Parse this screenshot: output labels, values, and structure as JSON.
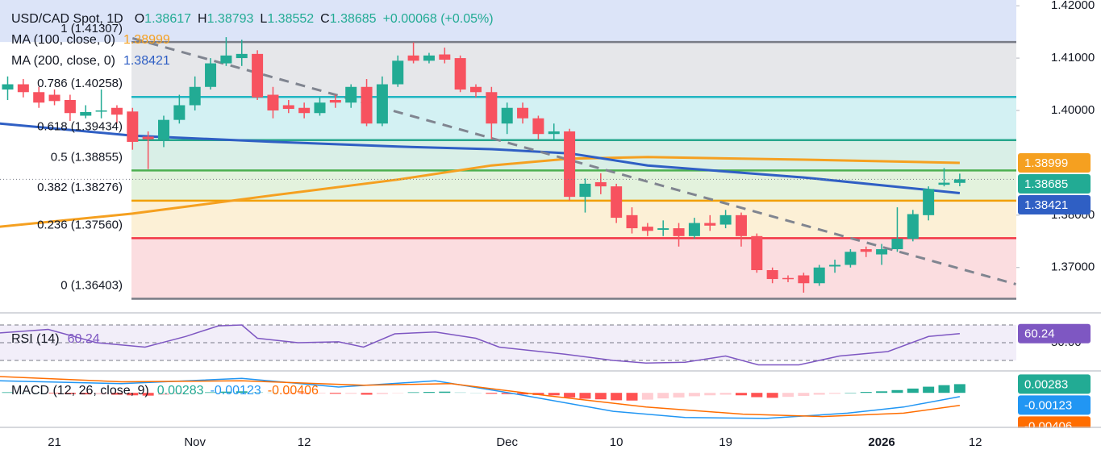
{
  "chart_data": {
    "type": "candlestick",
    "title": "USD/CAD Spot, 1D",
    "ohlc_labels": [
      "O",
      "H",
      "L",
      "C"
    ],
    "change": "+0.00068 (+0.05%)",
    "categories": [
      null,
      null,
      null,
      "21",
      null,
      null,
      null,
      null,
      null,
      null,
      null,
      null,
      "Nov",
      null,
      null,
      null,
      null,
      null,
      null,
      "12",
      null,
      null,
      null,
      null,
      null,
      null,
      null,
      null,
      null,
      null,
      null,
      null,
      "Dec",
      null,
      null,
      null,
      null,
      null,
      null,
      "10",
      null,
      null,
      null,
      null,
      null,
      null,
      "19",
      null,
      null,
      null,
      null,
      null,
      null,
      null,
      null,
      null,
      "2026",
      null,
      null,
      null,
      null,
      null,
      "12"
    ],
    "open": [
      1.404,
      1.405,
      1.4035,
      1.403,
      1.402,
      1.399,
      1.3998,
      1.4005,
      1.3998,
      1.395,
      1.3945,
      1.3982,
      1.401,
      1.4045,
      1.409,
      1.41,
      1.4108,
      1.403,
      1.401,
      1.4005,
      1.3995,
      1.402,
      1.4015,
      1.4045,
      1.3975,
      1.405,
      1.4105,
      1.4095,
      1.4107,
      1.41,
      1.4045,
      1.4035,
      1.3975,
      1.4005,
      1.3985,
      1.3955,
      1.396,
      1.3835,
      1.3863,
      1.3855,
      1.38,
      1.3778,
      1.3772,
      1.3775,
      1.376,
      1.3785,
      1.3782,
      1.38,
      1.376,
      1.3695,
      1.368,
      1.3685,
      1.367,
      1.3702,
      1.3705,
      1.3735,
      1.3725,
      1.3735,
      1.3755,
      1.38,
      1.3858,
      1.38617,
      null
    ],
    "high": [
      1.4065,
      1.406,
      1.4045,
      1.404,
      1.403,
      1.401,
      1.404,
      1.401,
      1.4005,
      1.396,
      1.399,
      1.403,
      1.4065,
      1.41,
      1.414,
      1.4135,
      1.4115,
      1.4045,
      1.402,
      1.4015,
      1.4025,
      1.403,
      1.405,
      1.406,
      1.4065,
      1.4105,
      1.413,
      1.411,
      1.412,
      1.4105,
      1.405,
      1.4045,
      1.4015,
      1.4015,
      1.399,
      1.3975,
      1.3965,
      1.387,
      1.388,
      1.386,
      1.3815,
      1.3785,
      1.379,
      1.3785,
      1.3795,
      1.38,
      1.381,
      1.3805,
      1.3765,
      1.37,
      1.3685,
      1.369,
      1.3705,
      1.3715,
      1.3735,
      1.374,
      1.3745,
      1.3815,
      1.381,
      1.3855,
      1.389,
      1.38793,
      null
    ],
    "low": [
      1.402,
      1.4025,
      1.4005,
      1.401,
      1.398,
      1.3985,
      1.3985,
      1.3975,
      1.3925,
      1.3888,
      1.393,
      1.3975,
      1.4,
      1.404,
      1.4085,
      1.4085,
      1.402,
      1.3985,
      1.3995,
      1.3985,
      1.399,
      1.4005,
      1.4005,
      1.397,
      1.397,
      1.4045,
      1.409,
      1.409,
      1.409,
      1.4035,
      1.4025,
      1.3945,
      1.3955,
      1.3975,
      1.3945,
      1.3945,
      1.3828,
      1.3805,
      1.384,
      1.3785,
      1.3765,
      1.376,
      1.376,
      1.374,
      1.3755,
      1.377,
      1.3775,
      1.374,
      1.369,
      1.367,
      1.3672,
      1.3652,
      1.3665,
      1.369,
      1.37,
      1.372,
      1.3705,
      1.373,
      1.375,
      1.379,
      1.3855,
      1.38552,
      null
    ],
    "close": [
      1.405,
      1.4035,
      1.4015,
      1.4018,
      1.3995,
      1.3997,
      1.4,
      1.3992,
      1.394,
      1.3945,
      1.3982,
      1.401,
      1.4045,
      1.409,
      1.4105,
      1.4108,
      1.4025,
      1.4,
      1.4003,
      1.3995,
      1.4015,
      1.4015,
      1.4045,
      1.3975,
      1.405,
      1.4095,
      1.4095,
      1.4105,
      1.4097,
      1.404,
      1.4035,
      1.3975,
      1.4005,
      1.3985,
      1.3955,
      1.396,
      1.3835,
      1.386,
      1.3855,
      1.3795,
      1.3775,
      1.377,
      1.3775,
      1.376,
      1.3785,
      1.378,
      1.38,
      1.376,
      1.3695,
      1.3678,
      1.3678,
      1.367,
      1.37,
      1.3705,
      1.373,
      1.373,
      1.3735,
      1.3755,
      1.3802,
      1.385,
      1.3862,
      1.38685,
      null
    ],
    "up_color": "#22ab94",
    "down_color": "#f7525f",
    "ylim": [
      1.3618,
      1.4211
    ],
    "yticks": [
      {
        "value": 1.42,
        "label": "1.42000"
      },
      {
        "value": 1.41,
        "label": "1.41000"
      },
      {
        "value": 1.4,
        "label": "1.40000"
      },
      {
        "value": 1.38,
        "label": "1.38000"
      },
      {
        "value": 1.37,
        "label": "1.37000"
      }
    ],
    "series": [
      {
        "name": "MA (100, close, 0)",
        "color": "#f5a020",
        "x": [
          -0.5,
          8,
          17,
          25,
          31,
          36,
          41,
          51,
          61
        ],
        "values": [
          1.3778,
          1.3803,
          1.3838,
          1.3868,
          1.3895,
          1.3908,
          1.3911,
          1.3906,
          1.38999
        ]
      },
      {
        "name": "MA (200, close, 0)",
        "color": "#2f5fc4",
        "x": [
          -0.5,
          8,
          17,
          25,
          31,
          36,
          41,
          51,
          61
        ],
        "values": [
          1.3975,
          1.3952,
          1.394,
          1.3931,
          1.3926,
          1.3918,
          1.3895,
          1.3872,
          1.38421
        ]
      }
    ],
    "trendline": {
      "color": "#808590",
      "x": [
        8,
        64.6
      ],
      "values": [
        1.4138,
        1.3668
      ]
    },
    "fib_top_fill": "#dce4f8",
    "fib_levels": [
      {
        "value": 1.41307,
        "label": "1 (1.41307)",
        "color": "#787b86",
        "fill": "#e6e7ea"
      },
      {
        "value": 1.40258,
        "label": "0.786 (1.40258)",
        "color": "#22b5c2",
        "fill": "#d3f1f3"
      },
      {
        "value": 1.39434,
        "label": "0.618 (1.39434)",
        "color": "#26a68c",
        "fill": "#d9efe7"
      },
      {
        "value": 1.38855,
        "label": "0.5 (1.38855)",
        "color": "#4caf50",
        "fill": "#e3f2dd"
      },
      {
        "value": 1.38276,
        "label": "0.382 (1.38276)",
        "color": "#f2a007",
        "fill": "#fcf0d6"
      },
      {
        "value": 1.3756,
        "label": "0.236 (1.37560)",
        "color": "#f23645",
        "fill": "#fbdde0"
      },
      {
        "value": 1.36403,
        "label": "0 (1.36403)",
        "color": "#787b86"
      }
    ],
    "rsi": {
      "name": "RSI (14)",
      "color": "#7e57c2",
      "band_color": "#7e57c2",
      "ylim": [
        20,
        80
      ],
      "levels": [
        70,
        50,
        30
      ],
      "yticks": [
        {
          "value": 50,
          "label": "50.00"
        }
      ],
      "x": [
        -0.5,
        2.6,
        5.7,
        8.8,
        11.4,
        13.5,
        15,
        16,
        18.6,
        21.2,
        22.8,
        24.8,
        27.4,
        30,
        31.5,
        35.7,
        38.8,
        40.9,
        43.4,
        46,
        48.1,
        50.7,
        53.3,
        56.4,
        59,
        61
      ],
      "values": [
        61,
        65,
        50,
        45,
        57,
        69,
        70,
        55,
        50,
        51,
        45,
        60,
        62,
        55,
        45,
        37,
        30,
        27,
        28,
        35,
        25,
        25,
        35,
        40,
        57,
        60.24
      ]
    },
    "macd": {
      "name": "MACD (12, 26, close, 9)",
      "ylim": [
        -0.0112,
        0.0066
      ],
      "histogram": {
        "colors": [
          "#22ab94",
          "#b2dfdb",
          "#ffcdd2",
          "#ff5252"
        ],
        "values": [
          0.0002,
          0.0001,
          0,
          -0.0002,
          -0.0004,
          -0.0005,
          -0.0005,
          -0.0006,
          -0.0008,
          -0.0009,
          -0.0007,
          -0.0004,
          -0.0001,
          0.0002,
          0.0004,
          0.0005,
          0.0003,
          0.0001,
          -0.0001,
          -0.0002,
          -0.0002,
          -0.0003,
          -0.0003,
          -0.0006,
          -0.0004,
          -0.0001,
          0.0002,
          0.0003,
          0.0004,
          0.0002,
          0,
          -0.0003,
          -0.0004,
          -0.0005,
          -0.0007,
          -0.0008,
          -0.0015,
          -0.0019,
          -0.0021,
          -0.0024,
          -0.0025,
          -0.0022,
          -0.0018,
          -0.0015,
          -0.0011,
          -0.0008,
          -0.0006,
          -0.0008,
          -0.0014,
          -0.0016,
          -0.0013,
          -0.001,
          -0.0006,
          -0.0003,
          0,
          0.0003,
          0.0005,
          0.0009,
          0.0014,
          0.002,
          0.0025,
          0.00283,
          null
        ]
      },
      "macd": {
        "color": "#2196f3",
        "x": [
          -0.5,
          7.3,
          15,
          21.2,
          27.4,
          32.6,
          38.8,
          43.4,
          48.6,
          53.8,
          57.4,
          61
        ],
        "values": [
          0.0039,
          0.003,
          0.0047,
          0.0019,
          0.0039,
          -0.0004,
          -0.006,
          -0.008,
          -0.0083,
          -0.0066,
          -0.0046,
          -0.00123
        ]
      },
      "signal": {
        "color": "#ff6d00",
        "x": [
          -0.5,
          7.3,
          15,
          22.8,
          28.4,
          34.6,
          40.9,
          47.1,
          52.2,
          57.4,
          61
        ],
        "values": [
          0.0053,
          0.0036,
          0.0039,
          0.0025,
          0.003,
          -0.0009,
          -0.0046,
          -0.0069,
          -0.0077,
          -0.0066,
          -0.00406
        ]
      }
    }
  }
}
